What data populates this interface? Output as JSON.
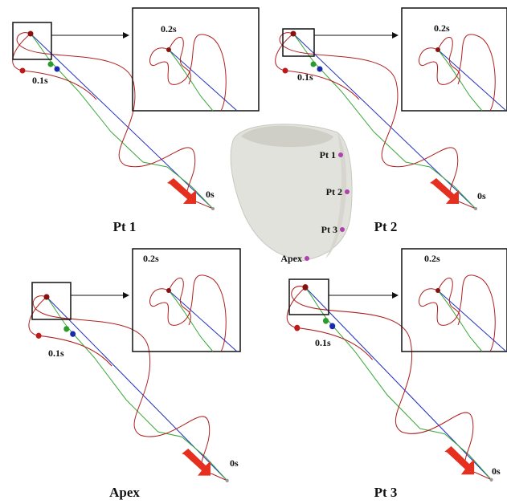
{
  "panels": [
    {
      "label": "Pt 1",
      "t0": "0s",
      "t1": "0.1s",
      "t2": "0.2s"
    },
    {
      "label": "Pt 2",
      "t0": "0s",
      "t1": "0.1s",
      "t2": "0.2s"
    },
    {
      "label": "Apex",
      "t0": "0s",
      "t1": "0.1s",
      "t2": "0.2s"
    },
    {
      "label": "Pt 3",
      "t0": "0s",
      "t1": "0.1s",
      "t2": "0.2s"
    }
  ],
  "heart": {
    "labels": [
      "Pt 1",
      "Pt 2",
      "Pt 3",
      "Apex"
    ]
  }
}
